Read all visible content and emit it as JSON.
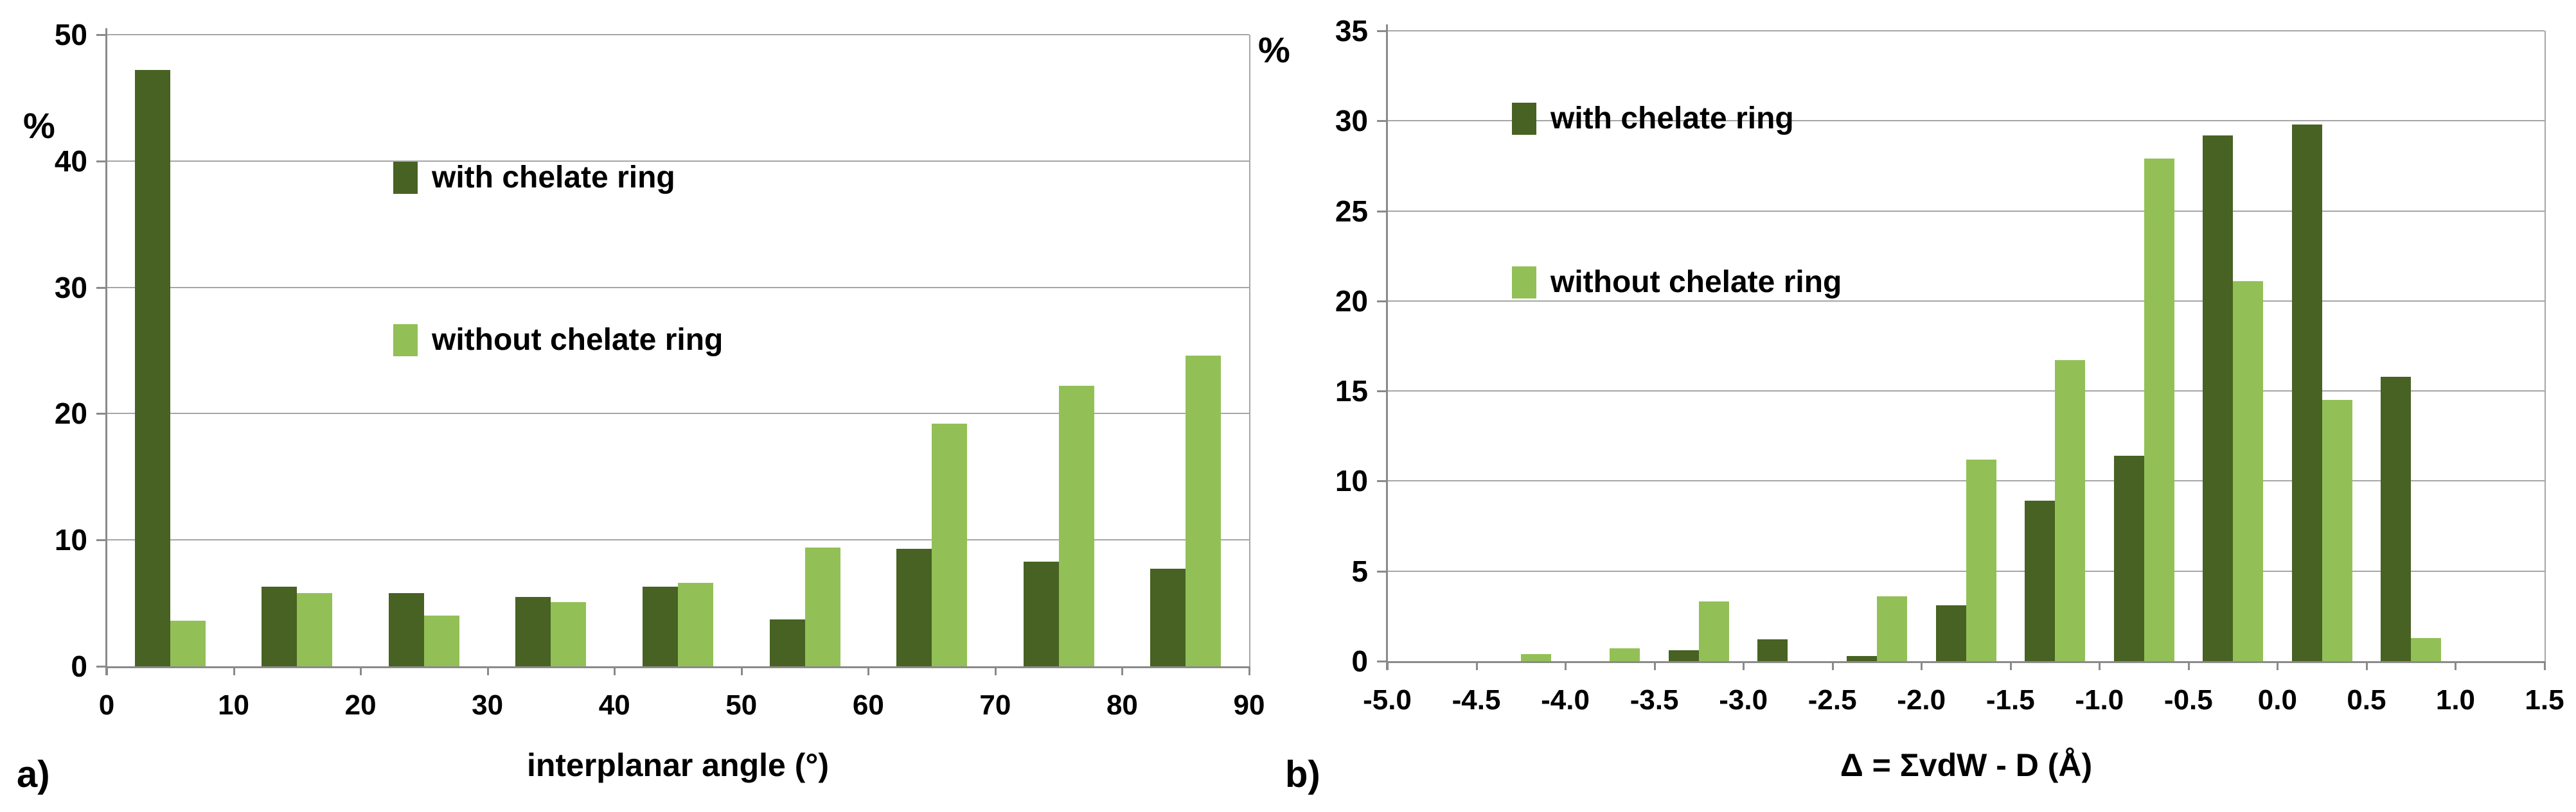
{
  "colors": {
    "dark_green": "#476222",
    "light_green": "#92c057",
    "gridline": "#a6a6a6",
    "axis": "#8a8a8a",
    "text": "#000000",
    "background": "#ffffff"
  },
  "legend": {
    "with_label": "with chelate ring",
    "without_label": "without chelate ring"
  },
  "chart_data": [
    {
      "id": "a",
      "type": "bar",
      "panel_label": "a)",
      "ylabel": "%",
      "xlabel": "interplanar angle (°)",
      "ylim": [
        0,
        50
      ],
      "yticks": [
        0,
        10,
        20,
        30,
        40,
        50
      ],
      "xtick_labels": [
        "0",
        "10",
        "20",
        "30",
        "40",
        "50",
        "60",
        "70",
        "80",
        "90"
      ],
      "bin_count": 9,
      "grid": true,
      "legend_position": "upper-middle-left-inside",
      "series": [
        {
          "name": "with chelate ring",
          "color_key": "dark_green",
          "values": [
            47.2,
            6.3,
            5.8,
            5.5,
            6.3,
            3.7,
            9.3,
            8.3,
            7.7
          ]
        },
        {
          "name": "without chelate ring",
          "color_key": "light_green",
          "values": [
            3.6,
            5.8,
            4.0,
            5.1,
            6.6,
            9.4,
            19.2,
            22.2,
            24.6
          ]
        }
      ]
    },
    {
      "id": "b",
      "type": "bar",
      "panel_label": "b)",
      "ylabel": "%",
      "xlabel": "Δ = ΣvdW - D (Å)",
      "ylim": [
        0,
        35
      ],
      "yticks": [
        0,
        5,
        10,
        15,
        20,
        25,
        30,
        35
      ],
      "xtick_labels": [
        "-5.0",
        "-4.5",
        "-4.0",
        "-3.5",
        "-3.0",
        "-2.5",
        "-2.0",
        "-1.5",
        "-1.0",
        "-0.5",
        "0.0",
        "0.5",
        "1.0",
        "1.5"
      ],
      "bin_count": 13,
      "grid": true,
      "legend_position": "upper-left-inside",
      "series": [
        {
          "name": "with chelate ring",
          "color_key": "dark_green",
          "values": [
            0,
            0,
            0,
            0.6,
            1.2,
            0.3,
            3.1,
            8.9,
            11.4,
            29.2,
            29.8,
            15.8,
            0
          ]
        },
        {
          "name": "without chelate ring",
          "color_key": "light_green",
          "values": [
            0,
            0.4,
            0.7,
            3.3,
            0,
            3.6,
            11.2,
            16.7,
            27.9,
            21.1,
            14.5,
            1.3,
            0
          ]
        }
      ]
    }
  ]
}
